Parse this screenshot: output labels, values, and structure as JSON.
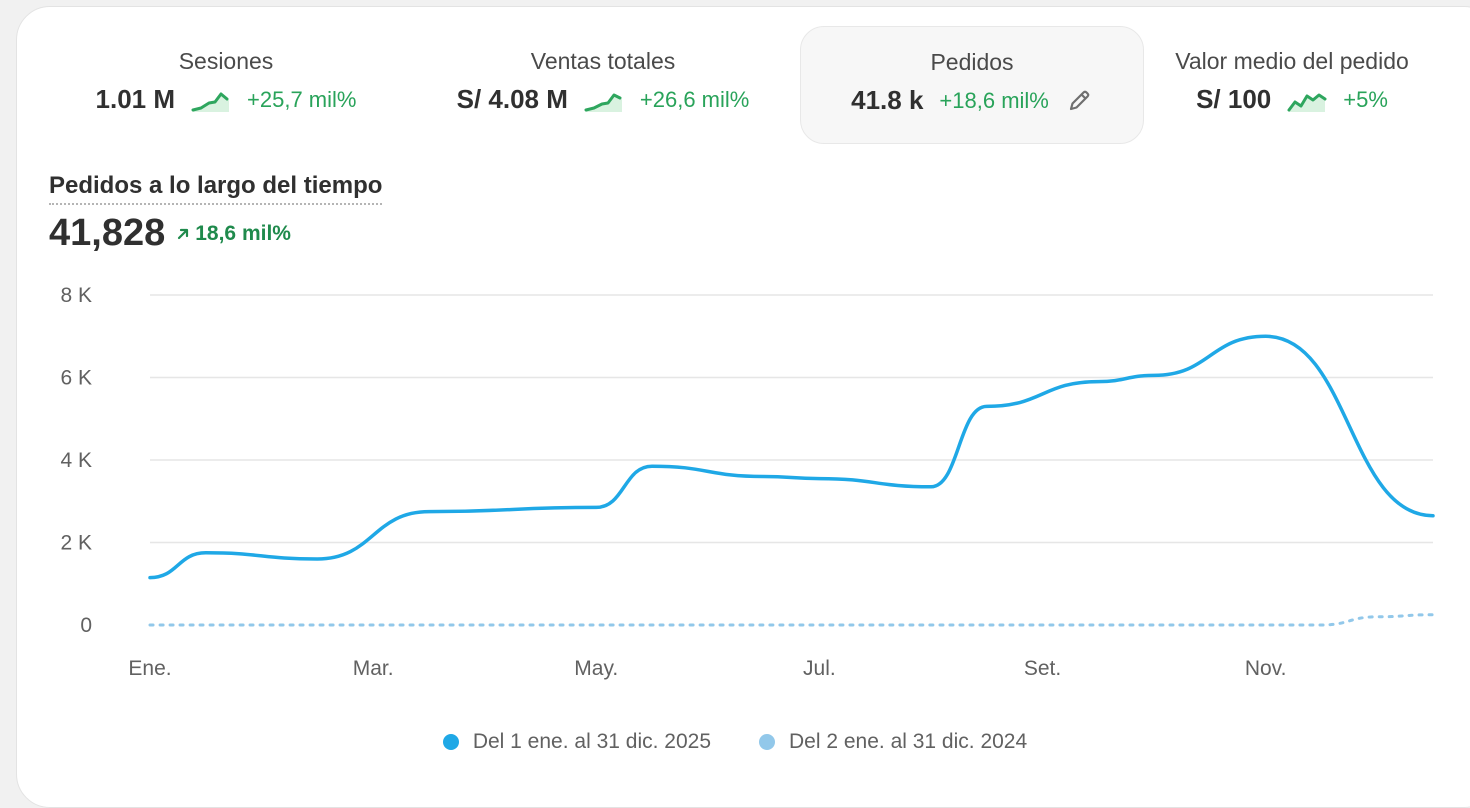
{
  "metrics": [
    {
      "label": "Sesiones",
      "value": "1.01 M",
      "change": "+25,7 mil%",
      "spark_icon": "sparkline-up-icon"
    },
    {
      "label": "Ventas totales",
      "value": "S/ 4.08 M",
      "change": "+26,6 mil%",
      "spark_icon": "sparkline-up-icon"
    },
    {
      "label": "Pedidos",
      "value": "41.8 k",
      "change": "+18,6 mil%",
      "edit_icon": "pencil-icon"
    },
    {
      "label": "Valor medio del pedido",
      "value": "S/ 100",
      "change": "+5%",
      "spark_icon": "sparkline-up-icon"
    }
  ],
  "chart_header": {
    "title": "Pedidos a lo largo del tiempo",
    "value": "41,828",
    "change": "18,6 mil%",
    "change_icon": "arrow-up-right-icon"
  },
  "colors": {
    "current": "#1fa8e6",
    "previous": "#92c8ea",
    "positive": "#29a35a",
    "grid": "#e6e6e6"
  },
  "chart_data": {
    "type": "line",
    "title": "Pedidos a lo largo del tiempo",
    "x_unit": "month",
    "x_tick_labels": [
      {
        "month": 1,
        "label": "Ene."
      },
      {
        "month": 3,
        "label": "Mar."
      },
      {
        "month": 5,
        "label": "May."
      },
      {
        "month": 7,
        "label": "Jul."
      },
      {
        "month": 9,
        "label": "Set."
      },
      {
        "month": 11,
        "label": "Nov."
      }
    ],
    "ylim": [
      0,
      8000
    ],
    "y_ticks": [
      {
        "value": 0,
        "label": "0"
      },
      {
        "value": 2000,
        "label": "2 K"
      },
      {
        "value": 4000,
        "label": "4 K"
      },
      {
        "value": 6000,
        "label": "6 K"
      },
      {
        "value": 8000,
        "label": "8 K"
      }
    ],
    "grid": true,
    "legend_position": "bottom-center",
    "series": [
      {
        "name": "Del 1 ene. al 31 dic. 2025",
        "style": "solid",
        "points": [
          {
            "x": 1,
            "y": 1150
          },
          {
            "x": 1.5,
            "y": 1750
          },
          {
            "x": 2.5,
            "y": 1600
          },
          {
            "x": 3.5,
            "y": 2750
          },
          {
            "x": 5,
            "y": 2850
          },
          {
            "x": 5.5,
            "y": 3850
          },
          {
            "x": 6.5,
            "y": 3600
          },
          {
            "x": 7,
            "y": 3550
          },
          {
            "x": 8,
            "y": 3350
          },
          {
            "x": 8.5,
            "y": 5300
          },
          {
            "x": 9.5,
            "y": 5900
          },
          {
            "x": 10,
            "y": 6050
          },
          {
            "x": 11,
            "y": 7000
          },
          {
            "x": 12.5,
            "y": 2650
          }
        ]
      },
      {
        "name": "Del 2 ene. al 31 dic. 2024",
        "style": "dashed",
        "points": [
          {
            "x": 1,
            "y": 0
          },
          {
            "x": 11.5,
            "y": 0
          },
          {
            "x": 12,
            "y": 200
          },
          {
            "x": 12.5,
            "y": 250
          }
        ]
      }
    ]
  }
}
